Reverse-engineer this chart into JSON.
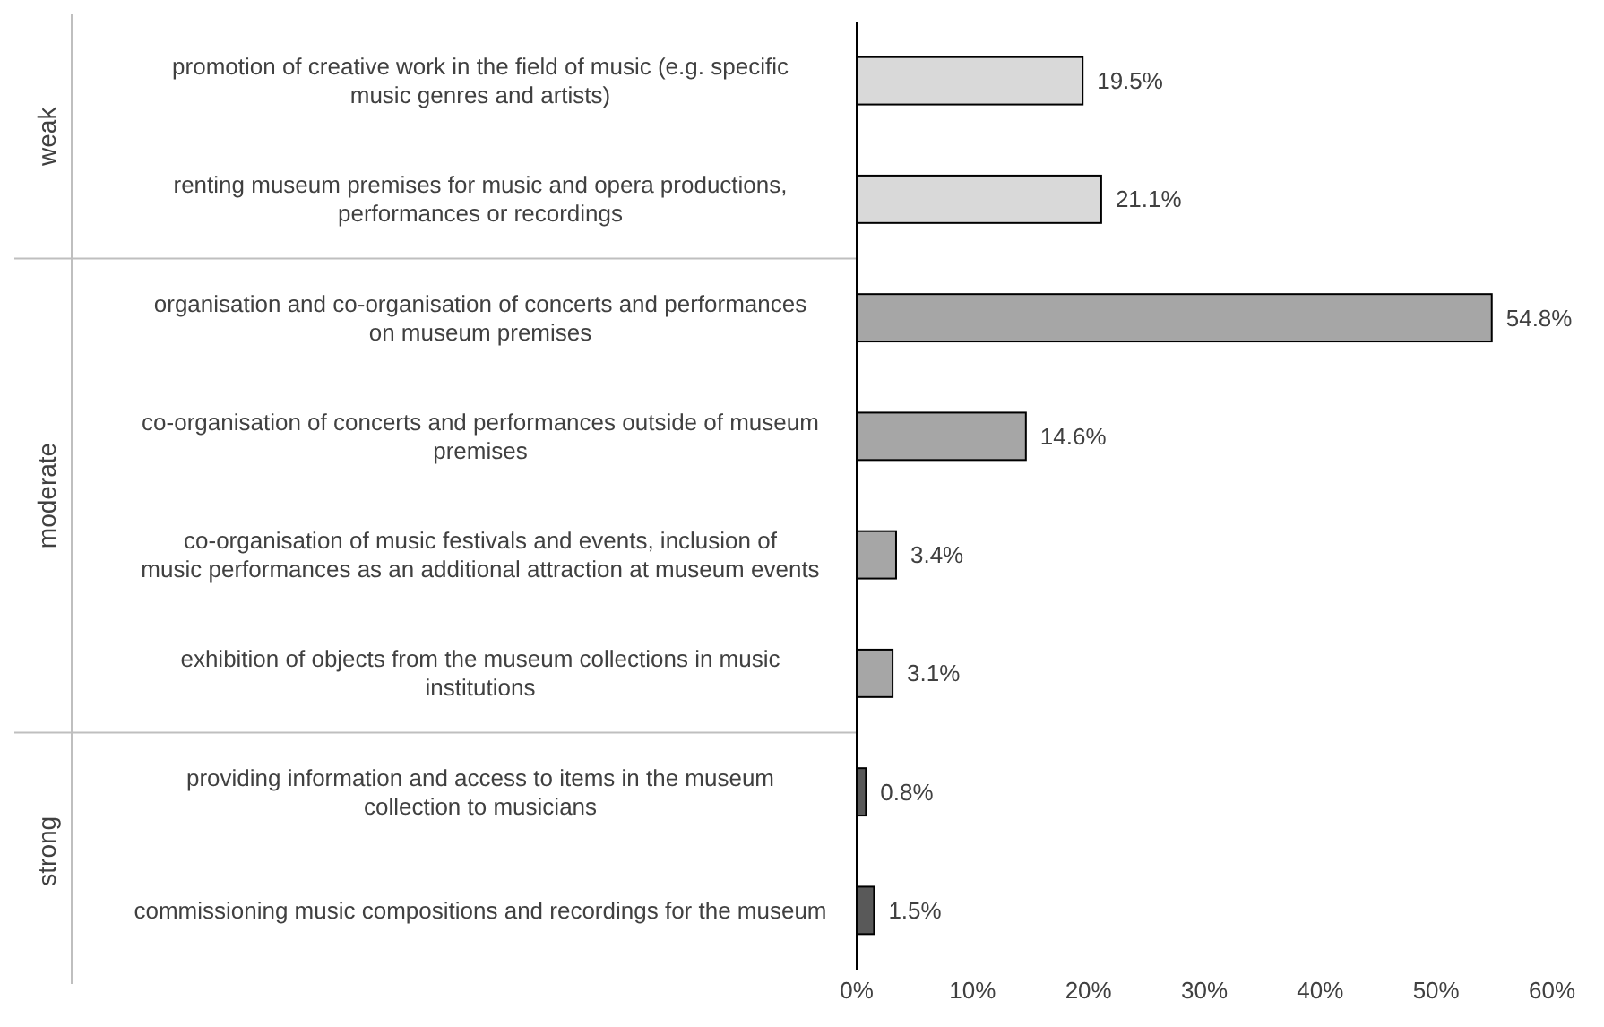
{
  "chart_data": {
    "type": "bar",
    "orientation": "horizontal",
    "categories": [
      "promotion of creative work in the field of music (e.g. specific music genres and artists)",
      "renting museum premises for music and opera productions, performances or recordings",
      "organisation and co-organisation of concerts and performances on museum premises",
      "co-organisation of concerts and performances outside of museum premises",
      "co-organisation of music festivals and events, inclusion of music performances as an additional attraction at museum events",
      "exhibition of objects from the museum collections in music institutions",
      "providing information and access to items in the museum collection to musicians",
      "commissioning music compositions and recordings for the museum"
    ],
    "values": [
      19.5,
      21.1,
      54.8,
      14.6,
      3.4,
      3.1,
      0.8,
      1.5
    ],
    "value_labels": [
      "19.5%",
      "21.1%",
      "54.8%",
      "14.6%",
      "3.4%",
      "3.1%",
      "0.8%",
      "1.5%"
    ],
    "colors": [
      "#d9d9d9",
      "#d9d9d9",
      "#a6a6a6",
      "#a6a6a6",
      "#a6a6a6",
      "#a6a6a6",
      "#595959",
      "#595959"
    ],
    "annotations": [
      "weak",
      "moderate",
      "strong"
    ],
    "xlim": [
      0,
      60
    ],
    "xticks": [
      {
        "value": 0,
        "label": "0%"
      },
      {
        "value": 10,
        "label": "10%"
      },
      {
        "value": 20,
        "label": "20%"
      },
      {
        "value": 30,
        "label": "30%"
      },
      {
        "value": 40,
        "label": "40%"
      },
      {
        "value": 50,
        "label": "50%"
      },
      {
        "value": 60,
        "label": "60%"
      }
    ]
  }
}
